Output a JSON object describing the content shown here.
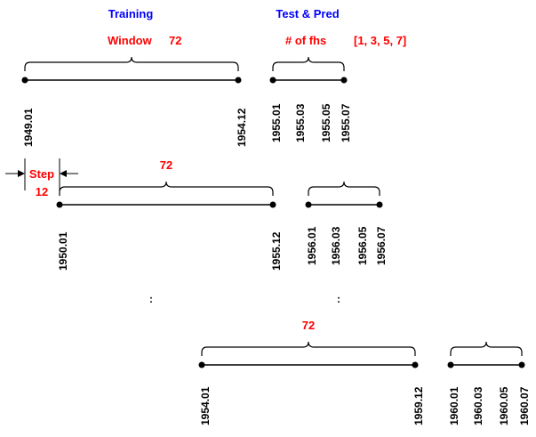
{
  "headers": {
    "training": "Training",
    "test_pred": "Test & Pred"
  },
  "window": {
    "label": "Window",
    "value": "72"
  },
  "fhs": {
    "label": "# of fhs",
    "value": "[1, 3, 5, 7]"
  },
  "step": {
    "label": "Step",
    "value": "12"
  },
  "row_window_labels": [
    "72",
    "72"
  ],
  "ellipsis": ":",
  "rows": [
    {
      "train_ticks": [
        "1949.01",
        "1954.12"
      ],
      "test_ticks": [
        "1955.01",
        "1955.03",
        "1955.05",
        "1955.07"
      ]
    },
    {
      "train_ticks": [
        "1950.01",
        "1955.12"
      ],
      "test_ticks": [
        "1956.01",
        "1956.03",
        "1956.05",
        "1956.07"
      ]
    },
    {
      "train_ticks": [
        "1954.01",
        "1959.12"
      ],
      "test_ticks": [
        "1960.01",
        "1960.03",
        "1960.05",
        "1960.07"
      ]
    }
  ],
  "colors": {
    "header": "#0000ff",
    "emphasis": "#ff0000",
    "line": "#000000"
  }
}
